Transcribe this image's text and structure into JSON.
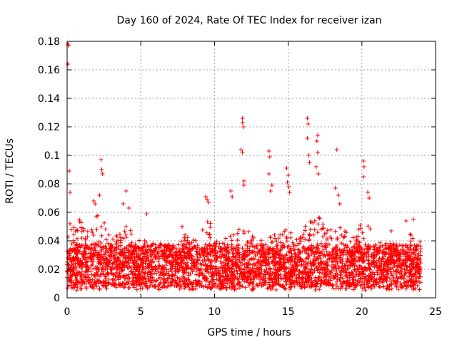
{
  "chart_data": {
    "type": "scatter",
    "title": "Day 160 of 2024, Rate Of TEC Index for receiver izan",
    "xlabel": "GPS time / hours",
    "ylabel": "ROTI / TECUs",
    "xlim": [
      0,
      25
    ],
    "ylim": [
      0,
      0.18
    ],
    "xticks": [
      0,
      5,
      10,
      15,
      20,
      25
    ],
    "xtick_labels": [
      "0",
      "5",
      "10",
      "15",
      "20",
      "25"
    ],
    "yticks": [
      0,
      0.02,
      0.04,
      0.06,
      0.08,
      0.1,
      0.12,
      0.14,
      0.16,
      0.18
    ],
    "ytick_labels": [
      "0",
      "0.02",
      "0.04",
      "0.06",
      "0.08",
      "0.1",
      "0.12",
      "0.14",
      "0.16",
      "0.18"
    ],
    "grid": true,
    "marker": "+",
    "marker_color": "#ff0000",
    "x_range_of_data": [
      0,
      24
    ],
    "baseline_band": [
      0.005,
      0.04
    ],
    "notable_points": [
      {
        "x": 0.05,
        "y": 0.178
      },
      {
        "x": 0.1,
        "y": 0.177
      },
      {
        "x": 0.05,
        "y": 0.164
      },
      {
        "x": 0.15,
        "y": 0.089
      },
      {
        "x": 0.2,
        "y": 0.074
      },
      {
        "x": 2.3,
        "y": 0.097
      },
      {
        "x": 2.35,
        "y": 0.09
      },
      {
        "x": 2.4,
        "y": 0.087
      },
      {
        "x": 2.2,
        "y": 0.072
      },
      {
        "x": 1.8,
        "y": 0.068
      },
      {
        "x": 1.9,
        "y": 0.066
      },
      {
        "x": 4.0,
        "y": 0.075
      },
      {
        "x": 3.8,
        "y": 0.066
      },
      {
        "x": 4.2,
        "y": 0.063
      },
      {
        "x": 5.4,
        "y": 0.059
      },
      {
        "x": 7.8,
        "y": 0.05
      },
      {
        "x": 9.4,
        "y": 0.071
      },
      {
        "x": 9.5,
        "y": 0.069
      },
      {
        "x": 9.6,
        "y": 0.067
      },
      {
        "x": 11.1,
        "y": 0.075
      },
      {
        "x": 11.2,
        "y": 0.071
      },
      {
        "x": 11.9,
        "y": 0.126
      },
      {
        "x": 11.9,
        "y": 0.123
      },
      {
        "x": 11.95,
        "y": 0.12
      },
      {
        "x": 11.8,
        "y": 0.104
      },
      {
        "x": 11.9,
        "y": 0.102
      },
      {
        "x": 12.0,
        "y": 0.082
      },
      {
        "x": 12.0,
        "y": 0.079
      },
      {
        "x": 13.7,
        "y": 0.103
      },
      {
        "x": 13.75,
        "y": 0.099
      },
      {
        "x": 13.7,
        "y": 0.087
      },
      {
        "x": 13.9,
        "y": 0.079
      },
      {
        "x": 13.8,
        "y": 0.075
      },
      {
        "x": 14.9,
        "y": 0.091
      },
      {
        "x": 15.0,
        "y": 0.086
      },
      {
        "x": 14.95,
        "y": 0.081
      },
      {
        "x": 15.05,
        "y": 0.078
      },
      {
        "x": 15.1,
        "y": 0.074
      },
      {
        "x": 16.3,
        "y": 0.126
      },
      {
        "x": 16.35,
        "y": 0.122
      },
      {
        "x": 16.3,
        "y": 0.112
      },
      {
        "x": 16.4,
        "y": 0.1
      },
      {
        "x": 16.45,
        "y": 0.095
      },
      {
        "x": 17.0,
        "y": 0.114
      },
      {
        "x": 16.95,
        "y": 0.11
      },
      {
        "x": 17.0,
        "y": 0.102
      },
      {
        "x": 16.9,
        "y": 0.092
      },
      {
        "x": 17.05,
        "y": 0.087
      },
      {
        "x": 18.3,
        "y": 0.104
      },
      {
        "x": 18.2,
        "y": 0.077
      },
      {
        "x": 18.4,
        "y": 0.072
      },
      {
        "x": 18.5,
        "y": 0.066
      },
      {
        "x": 20.1,
        "y": 0.096
      },
      {
        "x": 20.15,
        "y": 0.092
      },
      {
        "x": 20.1,
        "y": 0.085
      },
      {
        "x": 20.4,
        "y": 0.074
      },
      {
        "x": 20.5,
        "y": 0.07
      },
      {
        "x": 22.0,
        "y": 0.047
      },
      {
        "x": 23.0,
        "y": 0.054
      },
      {
        "x": 23.5,
        "y": 0.055
      }
    ],
    "density_envelope": [
      {
        "x": 0.0,
        "upper": 0.058
      },
      {
        "x": 0.5,
        "upper": 0.05
      },
      {
        "x": 1.0,
        "upper": 0.058
      },
      {
        "x": 1.5,
        "upper": 0.045
      },
      {
        "x": 2.0,
        "upper": 0.06
      },
      {
        "x": 2.5,
        "upper": 0.055
      },
      {
        "x": 3.0,
        "upper": 0.042
      },
      {
        "x": 3.5,
        "upper": 0.045
      },
      {
        "x": 4.0,
        "upper": 0.052
      },
      {
        "x": 4.5,
        "upper": 0.045
      },
      {
        "x": 5.0,
        "upper": 0.045
      },
      {
        "x": 5.5,
        "upper": 0.04
      },
      {
        "x": 6.0,
        "upper": 0.038
      },
      {
        "x": 6.5,
        "upper": 0.038
      },
      {
        "x": 7.0,
        "upper": 0.038
      },
      {
        "x": 7.5,
        "upper": 0.037
      },
      {
        "x": 8.0,
        "upper": 0.045
      },
      {
        "x": 8.5,
        "upper": 0.04
      },
      {
        "x": 9.0,
        "upper": 0.045
      },
      {
        "x": 9.5,
        "upper": 0.06
      },
      {
        "x": 10.0,
        "upper": 0.042
      },
      {
        "x": 10.5,
        "upper": 0.038
      },
      {
        "x": 11.0,
        "upper": 0.048
      },
      {
        "x": 11.5,
        "upper": 0.05
      },
      {
        "x": 12.0,
        "upper": 0.055
      },
      {
        "x": 12.5,
        "upper": 0.045
      },
      {
        "x": 13.0,
        "upper": 0.045
      },
      {
        "x": 13.5,
        "upper": 0.05
      },
      {
        "x": 14.0,
        "upper": 0.048
      },
      {
        "x": 14.5,
        "upper": 0.045
      },
      {
        "x": 15.0,
        "upper": 0.05
      },
      {
        "x": 15.5,
        "upper": 0.04
      },
      {
        "x": 16.0,
        "upper": 0.05
      },
      {
        "x": 16.5,
        "upper": 0.055
      },
      {
        "x": 17.0,
        "upper": 0.058
      },
      {
        "x": 17.5,
        "upper": 0.05
      },
      {
        "x": 18.0,
        "upper": 0.055
      },
      {
        "x": 18.5,
        "upper": 0.055
      },
      {
        "x": 19.0,
        "upper": 0.045
      },
      {
        "x": 19.5,
        "upper": 0.042
      },
      {
        "x": 20.0,
        "upper": 0.055
      },
      {
        "x": 20.5,
        "upper": 0.05
      },
      {
        "x": 21.0,
        "upper": 0.04
      },
      {
        "x": 21.5,
        "upper": 0.038
      },
      {
        "x": 22.0,
        "upper": 0.04
      },
      {
        "x": 22.5,
        "upper": 0.035
      },
      {
        "x": 23.0,
        "upper": 0.045
      },
      {
        "x": 23.5,
        "upper": 0.045
      },
      {
        "x": 24.0,
        "upper": 0.04
      }
    ]
  }
}
